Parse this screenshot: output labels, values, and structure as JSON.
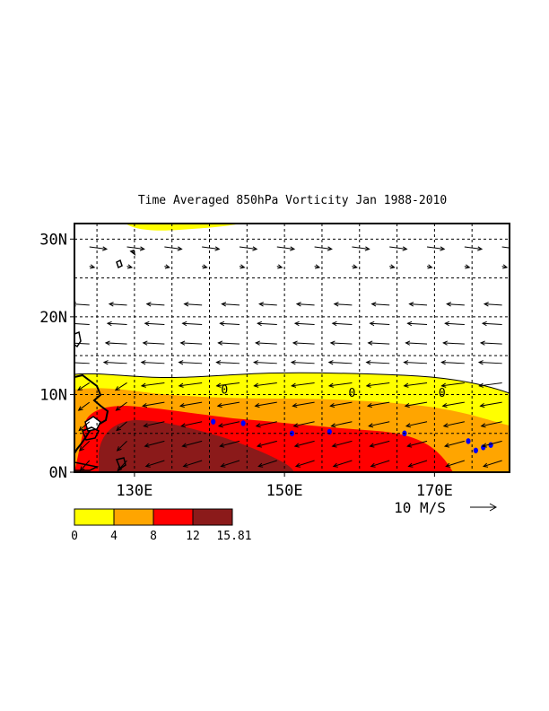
{
  "title": "Time Averaged 850hPa Vorticity  Jan 1988-2010",
  "map": {
    "lon_range": [
      122,
      180
    ],
    "lat_range": [
      0,
      32
    ],
    "lat_ticks": [
      {
        "value": 0,
        "label": "0N"
      },
      {
        "value": 10,
        "label": "10N"
      },
      {
        "value": 20,
        "label": "20N"
      },
      {
        "value": 30,
        "label": "30N"
      }
    ],
    "lon_ticks": [
      {
        "value": 130,
        "label": "130E"
      },
      {
        "value": 150,
        "label": "150E"
      },
      {
        "value": 170,
        "label": "170E"
      }
    ],
    "grid_lons": [
      125,
      130,
      135,
      140,
      145,
      150,
      155,
      160,
      165,
      170,
      175
    ],
    "grid_lats": [
      5,
      10,
      15,
      20,
      25,
      30
    ],
    "grid": true,
    "contour_label": "0",
    "contour_label_positions": [
      [
        142,
        10.7
      ],
      [
        159,
        10.3
      ],
      [
        171,
        10.3
      ]
    ],
    "vector_reference": {
      "label": "10 M/S",
      "speed": 10
    }
  },
  "colorbar": {
    "levels": [
      "0",
      "4",
      "8",
      "12",
      "15.81"
    ],
    "colors": [
      "#ffff00",
      "#ffa500",
      "#ff0000",
      "#8b1a1a"
    ]
  },
  "colors": {
    "vorticity_0_4": "#ffff00",
    "vorticity_4_8": "#ffa500",
    "vorticity_8_12": "#ff0000",
    "vorticity_12_plus": "#8b1a1a",
    "islands": "#0000ff"
  }
}
